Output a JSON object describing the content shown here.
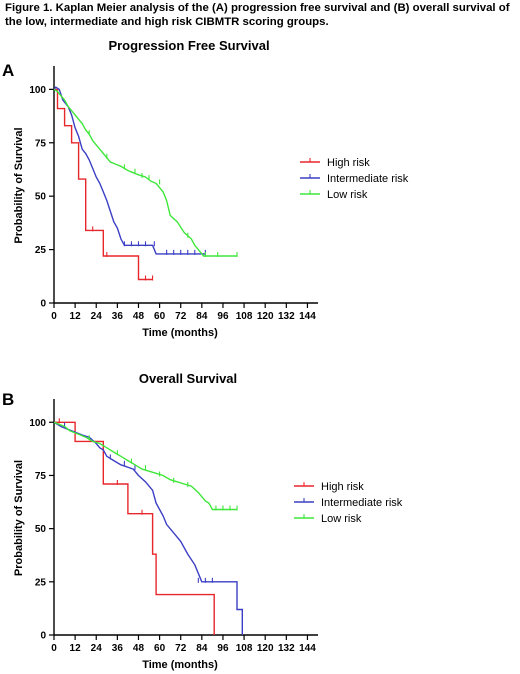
{
  "caption": "Figure 1. Kaplan Meier analysis of the (A) progression free survival and (B) overall survival of the low, intermediate and high risk CIBMTR scoring groups.",
  "colors": {
    "high": "#e8272b",
    "intermediate": "#3b3fc4",
    "low": "#3fe63a"
  },
  "chart_data": [
    {
      "type": "line",
      "panel": "A",
      "title": "Progression Free Survival",
      "xlabel": "Time (months)",
      "ylabel": "Probability of Survival",
      "xlim": [
        0,
        150
      ],
      "ylim": [
        0,
        110
      ],
      "xticks": [
        0,
        12,
        24,
        36,
        48,
        60,
        72,
        84,
        96,
        108,
        120,
        132,
        144
      ],
      "yticks": [
        0,
        25,
        50,
        75,
        100
      ],
      "legend_position": "right",
      "series": [
        {
          "name": "High risk",
          "key": "high",
          "x": [
            0,
            2,
            2,
            6,
            6,
            10,
            10,
            14,
            14,
            18,
            18,
            28,
            28,
            48,
            48,
            56
          ],
          "y": [
            100,
            100,
            91,
            91,
            83,
            83,
            75,
            75,
            58,
            58,
            34,
            34,
            22,
            22,
            11,
            11
          ],
          "censor": [
            [
              22,
              34
            ],
            [
              30,
              22
            ],
            [
              52,
              11
            ],
            [
              56,
              11
            ]
          ]
        },
        {
          "name": "Intermediate risk",
          "key": "intermediate",
          "x": [
            0,
            1,
            3,
            5,
            8,
            10,
            12,
            14,
            16,
            18,
            20,
            22,
            24,
            26,
            28,
            30,
            32,
            34,
            36,
            38,
            40,
            56,
            58,
            86,
            86
          ],
          "y": [
            100,
            101,
            100,
            95,
            92,
            88,
            82,
            78,
            72,
            70,
            67,
            63,
            59,
            56,
            52,
            48,
            43,
            38,
            35,
            30,
            27,
            27,
            23,
            23,
            23
          ],
          "censor": [
            [
              40,
              27
            ],
            [
              44,
              27
            ],
            [
              48,
              27
            ],
            [
              52,
              27
            ],
            [
              57,
              27
            ],
            [
              64,
              23
            ],
            [
              68,
              23
            ],
            [
              72,
              23
            ],
            [
              76,
              23
            ],
            [
              80,
              23
            ],
            [
              86,
              23
            ]
          ]
        },
        {
          "name": "Low risk",
          "key": "low",
          "x": [
            0,
            2,
            4,
            6,
            8,
            10,
            12,
            14,
            16,
            18,
            20,
            22,
            24,
            26,
            28,
            30,
            32,
            35,
            38,
            42,
            45,
            48,
            52,
            55,
            58,
            62,
            64,
            66,
            70,
            74,
            78,
            80,
            82,
            85,
            104
          ],
          "y": [
            100,
            99,
            97,
            95,
            92,
            90,
            88,
            86,
            84,
            81,
            79,
            76,
            74,
            72,
            70,
            68,
            66,
            65,
            64,
            62,
            61,
            60,
            59,
            57,
            56,
            52,
            48,
            41,
            38,
            33,
            30,
            27,
            25,
            22,
            22
          ],
          "censor": [
            [
              20,
              79
            ],
            [
              30,
              68
            ],
            [
              40,
              63
            ],
            [
              46,
              61
            ],
            [
              50,
              59
            ],
            [
              54,
              58
            ],
            [
              60,
              56
            ],
            [
              76,
              31
            ],
            [
              86,
              22
            ],
            [
              93,
              22
            ],
            [
              104,
              22
            ]
          ]
        }
      ]
    },
    {
      "type": "line",
      "panel": "B",
      "title": "Overall Survival",
      "xlabel": "Time (months)",
      "ylabel": "Probability of Survival",
      "xlim": [
        0,
        150
      ],
      "ylim": [
        0,
        110
      ],
      "xticks": [
        0,
        12,
        24,
        36,
        48,
        60,
        72,
        84,
        96,
        108,
        120,
        132,
        144
      ],
      "yticks": [
        0,
        25,
        50,
        75,
        100
      ],
      "legend_position": "right",
      "series": [
        {
          "name": "High risk",
          "key": "high",
          "x": [
            0,
            12,
            12,
            28,
            28,
            42,
            42,
            56,
            56,
            58,
            58,
            91,
            91
          ],
          "y": [
            100,
            100,
            91,
            91,
            71,
            71,
            57,
            57,
            38,
            38,
            19,
            19,
            0
          ],
          "censor": [
            [
              3,
              100
            ],
            [
              36,
              71
            ],
            [
              50,
              57
            ]
          ]
        },
        {
          "name": "Intermediate risk",
          "key": "intermediate",
          "x": [
            0,
            4,
            10,
            16,
            20,
            24,
            26,
            28,
            30,
            34,
            38,
            45,
            48,
            52,
            56,
            58,
            60,
            62,
            64,
            68,
            72,
            76,
            80,
            84,
            104,
            104,
            107,
            107
          ],
          "y": [
            100,
            98,
            96,
            94,
            93,
            90,
            88,
            87,
            84,
            82,
            80,
            78,
            75,
            72,
            68,
            62,
            59,
            56,
            52,
            48,
            44,
            38,
            33,
            25,
            25,
            12,
            12,
            0
          ],
          "censor": [
            [
              6,
              98
            ],
            [
              32,
              83
            ],
            [
              40,
              80
            ],
            [
              46,
              78
            ],
            [
              82,
              25
            ],
            [
              86,
              25
            ],
            [
              90,
              25
            ]
          ]
        },
        {
          "name": "Low risk",
          "key": "low",
          "x": [
            0,
            3,
            6,
            9,
            12,
            15,
            18,
            22,
            26,
            30,
            34,
            38,
            42,
            46,
            50,
            54,
            58,
            62,
            66,
            70,
            74,
            78,
            82,
            84,
            86,
            88,
            90,
            104
          ],
          "y": [
            100,
            99,
            98,
            96,
            95,
            94,
            93,
            91,
            90,
            88,
            86,
            84,
            82,
            80,
            78,
            77,
            76,
            75,
            73,
            72,
            71,
            70,
            67,
            65,
            63,
            62,
            59,
            59
          ],
          "censor": [
            [
              20,
              92
            ],
            [
              36,
              85
            ],
            [
              44,
              81
            ],
            [
              52,
              78
            ],
            [
              60,
              75
            ],
            [
              68,
              72
            ],
            [
              76,
              70
            ],
            [
              92,
              59
            ],
            [
              96,
              59
            ],
            [
              100,
              59
            ],
            [
              104,
              59
            ]
          ]
        }
      ]
    }
  ]
}
